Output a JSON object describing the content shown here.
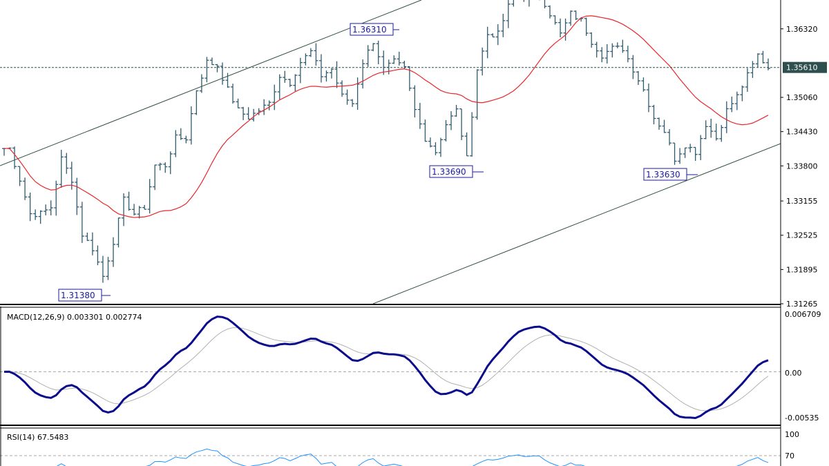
{
  "colors": {
    "bars": "#2f5a6e",
    "ma": "#e8262b",
    "macd": "#0a0a8c",
    "signal": "#b0b0b0",
    "rsi": "#1e90ff",
    "channel": "#2f4f3f",
    "annotation": "#1a1aa0",
    "current_price_bg": "#2f4f4f"
  },
  "chart_data": [
    {
      "type": "ohlc-bars",
      "panel": "price",
      "close": [
        1.3412,
        1.3355,
        1.3292,
        1.3292,
        1.3304,
        1.3393,
        1.3355,
        1.3254,
        1.3228,
        1.3177,
        1.3241,
        1.3317,
        1.3292,
        1.3304,
        1.3381,
        1.3381,
        1.3431,
        1.3431,
        1.352,
        1.3571,
        1.3565,
        1.352,
        1.3482,
        1.3469,
        1.3482,
        1.3495,
        1.3546,
        1.3533,
        1.3571,
        1.359,
        1.3546,
        1.3558,
        1.3508,
        1.3495,
        1.3571,
        1.3609,
        1.3558,
        1.3571,
        1.3558,
        1.3482,
        1.3431,
        1.3406,
        1.3457,
        1.3482,
        1.3393,
        1.3558,
        1.3622,
        1.3622,
        1.3673,
        1.3698,
        1.3685,
        1.3698,
        1.366,
        1.3622,
        1.366,
        1.3647,
        1.3609,
        1.3584,
        1.3596,
        1.3596,
        1.3558,
        1.352,
        1.3469,
        1.3444,
        1.3393,
        1.3419,
        1.3406,
        1.3457,
        1.3431,
        1.3482,
        1.3508,
        1.3546,
        1.3584,
        1.3561
      ],
      "ylim": [
        1.31265,
        1.3685
      ],
      "y_ticks": [
        "1.36320",
        "1.35060",
        "1.34430",
        "1.33800",
        "1.33155",
        "1.32525",
        "1.31895",
        "1.31265"
      ],
      "current_price": "1.35610",
      "moving_average": "red",
      "annotations": [
        {
          "text": "1.31380",
          "price": 1.3138
        },
        {
          "text": "1.36310",
          "price": 1.3631
        },
        {
          "text": "1.33690",
          "price": 1.3369
        },
        {
          "text": "1.33630",
          "price": 1.3363
        }
      ],
      "grid": false
    },
    {
      "type": "line",
      "panel": "macd",
      "label": "MACD(12,26,9) 0.003301 0.002774",
      "ylim": [
        -0.00535,
        0.006709
      ],
      "y_ticks": [
        "0.006709",
        "0.00",
        "-0.00535"
      ]
    },
    {
      "type": "line",
      "panel": "rsi",
      "label": "RSI(14) 67.5483",
      "y_ticks": [
        "100",
        "70"
      ]
    }
  ]
}
